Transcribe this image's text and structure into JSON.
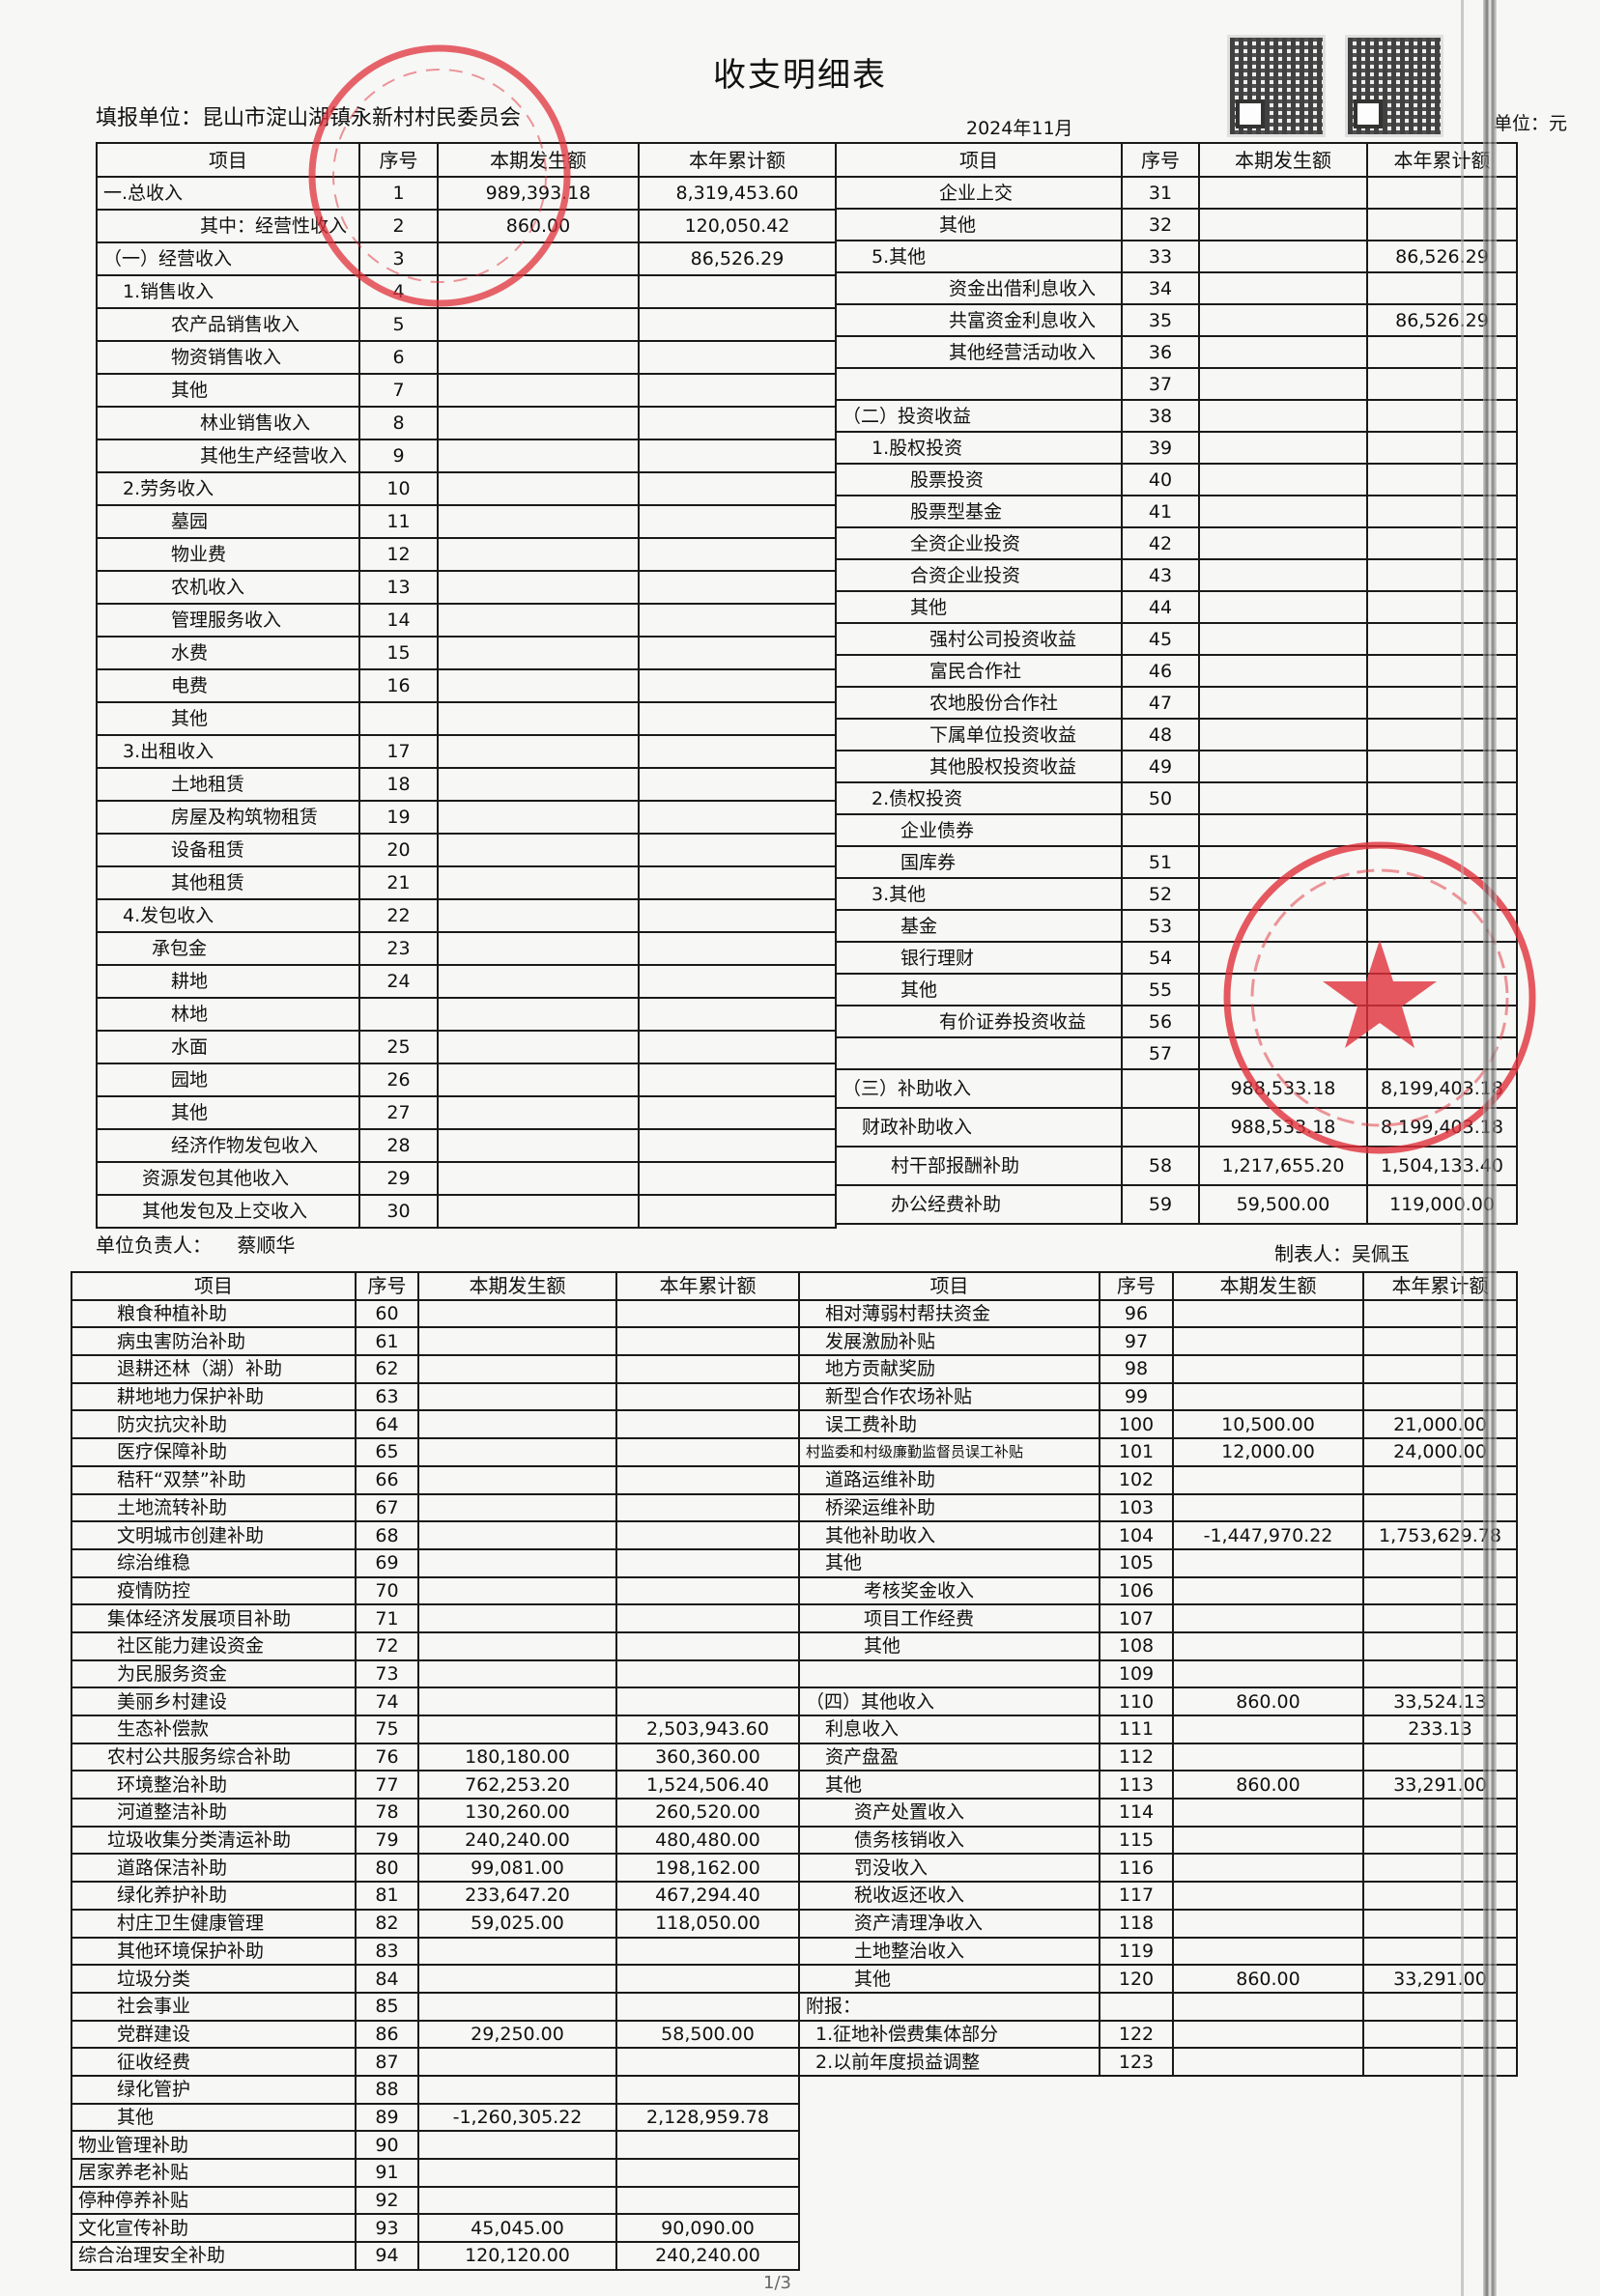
{
  "title": "收支明细表",
  "unit_label": "填报单位：昆山市淀山湖镇永新村村民委员会",
  "period": "2024年11月",
  "currency_label": "单位：元",
  "headers": {
    "item": "项目",
    "seq": "序号",
    "current": "本期发生额",
    "ytd": "本年累计额"
  },
  "responsible_label": "单位负责人：",
  "responsible_name": "蔡顺华",
  "preparer_label": "制表人：",
  "preparer_name": "吴佩玉",
  "page": "1/3",
  "colors": {
    "seal": "#e0303a",
    "ink": "#111111"
  },
  "icons": [
    "qr-code-icon",
    "qr-code-icon",
    "official-seal",
    "official-seal"
  ],
  "top_left": [
    {
      "item": "一.总收入",
      "seq": "1",
      "cur": "989,393.18",
      "ytd": "8,319,453.60"
    },
    {
      "item": "其中：经营性收入",
      "seq": "2",
      "cur": "860.00",
      "ytd": "120,050.42"
    },
    {
      "item": "（一）经营收入",
      "seq": "3",
      "cur": "",
      "ytd": "86,526.29"
    },
    {
      "item": "1.销售收入",
      "seq": "4",
      "cur": "",
      "ytd": ""
    },
    {
      "item": "农产品销售收入",
      "seq": "5",
      "cur": "",
      "ytd": ""
    },
    {
      "item": "物资销售收入",
      "seq": "6",
      "cur": "",
      "ytd": ""
    },
    {
      "item": "其他",
      "seq": "7",
      "cur": "",
      "ytd": ""
    },
    {
      "item": "林业销售收入",
      "seq": "8",
      "cur": "",
      "ytd": ""
    },
    {
      "item": "其他生产经营收入",
      "seq": "9",
      "cur": "",
      "ytd": ""
    },
    {
      "item": "2.劳务收入",
      "seq": "10",
      "cur": "",
      "ytd": ""
    },
    {
      "item": "墓园",
      "seq": "11",
      "cur": "",
      "ytd": ""
    },
    {
      "item": "物业费",
      "seq": "12",
      "cur": "",
      "ytd": ""
    },
    {
      "item": "农机收入",
      "seq": "13",
      "cur": "",
      "ytd": ""
    },
    {
      "item": "管理服务收入",
      "seq": "14",
      "cur": "",
      "ytd": ""
    },
    {
      "item": "水费",
      "seq": "15",
      "cur": "",
      "ytd": ""
    },
    {
      "item": "电费",
      "seq": "16",
      "cur": "",
      "ytd": ""
    },
    {
      "item": "其他",
      "seq": "",
      "cur": "",
      "ytd": ""
    },
    {
      "item": "3.出租收入",
      "seq": "17",
      "cur": "",
      "ytd": ""
    },
    {
      "item": "土地租赁",
      "seq": "18",
      "cur": "",
      "ytd": ""
    },
    {
      "item": "房屋及构筑物租赁",
      "seq": "19",
      "cur": "",
      "ytd": ""
    },
    {
      "item": "设备租赁",
      "seq": "20",
      "cur": "",
      "ytd": ""
    },
    {
      "item": "其他租赁",
      "seq": "21",
      "cur": "",
      "ytd": ""
    },
    {
      "item": "4.发包收入",
      "seq": "22",
      "cur": "",
      "ytd": ""
    },
    {
      "item": "承包金",
      "seq": "23",
      "cur": "",
      "ytd": ""
    },
    {
      "item": "耕地",
      "seq": "24",
      "cur": "",
      "ytd": ""
    },
    {
      "item": "林地",
      "seq": "",
      "cur": "",
      "ytd": ""
    },
    {
      "item": "水面",
      "seq": "25",
      "cur": "",
      "ytd": ""
    },
    {
      "item": "园地",
      "seq": "26",
      "cur": "",
      "ytd": ""
    },
    {
      "item": "其他",
      "seq": "27",
      "cur": "",
      "ytd": ""
    },
    {
      "item": "经济作物发包收入",
      "seq": "28",
      "cur": "",
      "ytd": ""
    },
    {
      "item": "资源发包其他收入",
      "seq": "29",
      "cur": "",
      "ytd": ""
    },
    {
      "item": "其他发包及上交收入",
      "seq": "30",
      "cur": "",
      "ytd": ""
    }
  ],
  "top_right": [
    {
      "item": "企业上交",
      "seq": "31",
      "cur": "",
      "ytd": ""
    },
    {
      "item": "其他",
      "seq": "32",
      "cur": "",
      "ytd": ""
    },
    {
      "item": "5.其他",
      "seq": "33",
      "cur": "",
      "ytd": "86,526.29"
    },
    {
      "item": "资金出借利息收入",
      "seq": "34",
      "cur": "",
      "ytd": ""
    },
    {
      "item": "共富资金利息收入",
      "seq": "35",
      "cur": "",
      "ytd": "86,526.29"
    },
    {
      "item": "其他经营活动收入",
      "seq": "36",
      "cur": "",
      "ytd": ""
    },
    {
      "item": "",
      "seq": "37",
      "cur": "",
      "ytd": ""
    },
    {
      "item": "（二）投资收益",
      "seq": "38",
      "cur": "",
      "ytd": ""
    },
    {
      "item": "1.股权投资",
      "seq": "39",
      "cur": "",
      "ytd": ""
    },
    {
      "item": "股票投资",
      "seq": "40",
      "cur": "",
      "ytd": ""
    },
    {
      "item": "股票型基金",
      "seq": "41",
      "cur": "",
      "ytd": ""
    },
    {
      "item": "全资企业投资",
      "seq": "42",
      "cur": "",
      "ytd": ""
    },
    {
      "item": "合资企业投资",
      "seq": "43",
      "cur": "",
      "ytd": ""
    },
    {
      "item": "其他",
      "seq": "44",
      "cur": "",
      "ytd": ""
    },
    {
      "item": "强村公司投资收益",
      "seq": "45",
      "cur": "",
      "ytd": ""
    },
    {
      "item": "富民合作社",
      "seq": "46",
      "cur": "",
      "ytd": ""
    },
    {
      "item": "农地股份合作社",
      "seq": "47",
      "cur": "",
      "ytd": ""
    },
    {
      "item": "下属单位投资收益",
      "seq": "48",
      "cur": "",
      "ytd": ""
    },
    {
      "item": "其他股权投资收益",
      "seq": "49",
      "cur": "",
      "ytd": ""
    },
    {
      "item": "2.债权投资",
      "seq": "50",
      "cur": "",
      "ytd": ""
    },
    {
      "item": "企业债券",
      "seq": "",
      "cur": "",
      "ytd": ""
    },
    {
      "item": "国库券",
      "seq": "51",
      "cur": "",
      "ytd": ""
    },
    {
      "item": "3.其他",
      "seq": "52",
      "cur": "",
      "ytd": ""
    },
    {
      "item": "基金",
      "seq": "53",
      "cur": "",
      "ytd": ""
    },
    {
      "item": "银行理财",
      "seq": "54",
      "cur": "",
      "ytd": ""
    },
    {
      "item": "其他",
      "seq": "55",
      "cur": "",
      "ytd": ""
    },
    {
      "item": "有价证券投资收益",
      "seq": "56",
      "cur": "",
      "ytd": ""
    },
    {
      "item": "",
      "seq": "57",
      "cur": "",
      "ytd": ""
    },
    {
      "item": "（三）补助收入",
      "seq": "",
      "cur": "988,533.18",
      "ytd": "8,199,403.18"
    },
    {
      "item": "财政补助收入",
      "seq": "",
      "cur": "988,533.18",
      "ytd": "8,199,403.18"
    },
    {
      "item": "村干部报酬补助",
      "seq": "58",
      "cur": "1,217,655.20",
      "ytd": "1,504,133.40"
    },
    {
      "item": "办公经费补助",
      "seq": "59",
      "cur": "59,500.00",
      "ytd": "119,000.00"
    }
  ],
  "bottom_left": [
    {
      "item": "粮食种植补助",
      "seq": "60",
      "cur": "",
      "ytd": ""
    },
    {
      "item": "病虫害防治补助",
      "seq": "61",
      "cur": "",
      "ytd": ""
    },
    {
      "item": "退耕还林（湖）补助",
      "seq": "62",
      "cur": "",
      "ytd": ""
    },
    {
      "item": "耕地地力保护补助",
      "seq": "63",
      "cur": "",
      "ytd": ""
    },
    {
      "item": "防灾抗灾补助",
      "seq": "64",
      "cur": "",
      "ytd": ""
    },
    {
      "item": "医疗保障补助",
      "seq": "65",
      "cur": "",
      "ytd": ""
    },
    {
      "item": "秸秆“双禁”补助",
      "seq": "66",
      "cur": "",
      "ytd": ""
    },
    {
      "item": "土地流转补助",
      "seq": "67",
      "cur": "",
      "ytd": ""
    },
    {
      "item": "文明城市创建补助",
      "seq": "68",
      "cur": "",
      "ytd": ""
    },
    {
      "item": "综治维稳",
      "seq": "69",
      "cur": "",
      "ytd": ""
    },
    {
      "item": "疫情防控",
      "seq": "70",
      "cur": "",
      "ytd": ""
    },
    {
      "item": "集体经济发展项目补助",
      "seq": "71",
      "cur": "",
      "ytd": ""
    },
    {
      "item": "社区能力建设资金",
      "seq": "72",
      "cur": "",
      "ytd": ""
    },
    {
      "item": "为民服务资金",
      "seq": "73",
      "cur": "",
      "ytd": ""
    },
    {
      "item": "美丽乡村建设",
      "seq": "74",
      "cur": "",
      "ytd": ""
    },
    {
      "item": "生态补偿款",
      "seq": "75",
      "cur": "",
      "ytd": "2,503,943.60"
    },
    {
      "item": "农村公共服务综合补助",
      "seq": "76",
      "cur": "180,180.00",
      "ytd": "360,360.00"
    },
    {
      "item": "环境整治补助",
      "seq": "77",
      "cur": "762,253.20",
      "ytd": "1,524,506.40"
    },
    {
      "item": "河道整洁补助",
      "seq": "78",
      "cur": "130,260.00",
      "ytd": "260,520.00"
    },
    {
      "item": "垃圾收集分类清运补助",
      "seq": "79",
      "cur": "240,240.00",
      "ytd": "480,480.00"
    },
    {
      "item": "道路保洁补助",
      "seq": "80",
      "cur": "99,081.00",
      "ytd": "198,162.00"
    },
    {
      "item": "绿化养护补助",
      "seq": "81",
      "cur": "233,647.20",
      "ytd": "467,294.40"
    },
    {
      "item": "村庄卫生健康管理",
      "seq": "82",
      "cur": "59,025.00",
      "ytd": "118,050.00"
    },
    {
      "item": "其他环境保护补助",
      "seq": "83",
      "cur": "",
      "ytd": ""
    },
    {
      "item": "垃圾分类",
      "seq": "84",
      "cur": "",
      "ytd": ""
    },
    {
      "item": "社会事业",
      "seq": "85",
      "cur": "",
      "ytd": ""
    },
    {
      "item": "党群建设",
      "seq": "86",
      "cur": "29,250.00",
      "ytd": "58,500.00"
    },
    {
      "item": "征收经费",
      "seq": "87",
      "cur": "",
      "ytd": ""
    },
    {
      "item": "绿化管护",
      "seq": "88",
      "cur": "",
      "ytd": ""
    },
    {
      "item": "其他",
      "seq": "89",
      "cur": "-1,260,305.22",
      "ytd": "2,128,959.78"
    },
    {
      "item": "物业管理补助",
      "seq": "90",
      "cur": "",
      "ytd": ""
    },
    {
      "item": "居家养老补贴",
      "seq": "91",
      "cur": "",
      "ytd": ""
    },
    {
      "item": "停种停养补贴",
      "seq": "92",
      "cur": "",
      "ytd": ""
    },
    {
      "item": "文化宣传补助",
      "seq": "93",
      "cur": "45,045.00",
      "ytd": "90,090.00"
    },
    {
      "item": "综合治理安全补助",
      "seq": "94",
      "cur": "120,120.00",
      "ytd": "240,240.00"
    }
  ],
  "bottom_right": [
    {
      "item": "相对薄弱村帮扶资金",
      "seq": "96",
      "cur": "",
      "ytd": ""
    },
    {
      "item": "发展激励补贴",
      "seq": "97",
      "cur": "",
      "ytd": ""
    },
    {
      "item": "地方贡献奖励",
      "seq": "98",
      "cur": "",
      "ytd": ""
    },
    {
      "item": "新型合作农场补贴",
      "seq": "99",
      "cur": "",
      "ytd": ""
    },
    {
      "item": "误工费补助",
      "seq": "100",
      "cur": "10,500.00",
      "ytd": "21,000.00"
    },
    {
      "item": "村监委和村级廉勤监督员误工补贴",
      "seq": "101",
      "cur": "12,000.00",
      "ytd": "24,000.00"
    },
    {
      "item": "道路运维补助",
      "seq": "102",
      "cur": "",
      "ytd": ""
    },
    {
      "item": "桥梁运维补助",
      "seq": "103",
      "cur": "",
      "ytd": ""
    },
    {
      "item": "其他补助收入",
      "seq": "104",
      "cur": "-1,447,970.22",
      "ytd": "1,753,629.78"
    },
    {
      "item": "其他",
      "seq": "105",
      "cur": "",
      "ytd": ""
    },
    {
      "item": "考核奖金收入",
      "seq": "106",
      "cur": "",
      "ytd": ""
    },
    {
      "item": "项目工作经费",
      "seq": "107",
      "cur": "",
      "ytd": ""
    },
    {
      "item": "其他",
      "seq": "108",
      "cur": "",
      "ytd": ""
    },
    {
      "item": "",
      "seq": "109",
      "cur": "",
      "ytd": ""
    },
    {
      "item": "（四）其他收入",
      "seq": "110",
      "cur": "860.00",
      "ytd": "33,524.13"
    },
    {
      "item": "利息收入",
      "seq": "111",
      "cur": "",
      "ytd": "233.13"
    },
    {
      "item": "资产盘盈",
      "seq": "112",
      "cur": "",
      "ytd": ""
    },
    {
      "item": "其他",
      "seq": "113",
      "cur": "860.00",
      "ytd": "33,291.00"
    },
    {
      "item": "资产处置收入",
      "seq": "114",
      "cur": "",
      "ytd": ""
    },
    {
      "item": "债务核销收入",
      "seq": "115",
      "cur": "",
      "ytd": ""
    },
    {
      "item": "罚没收入",
      "seq": "116",
      "cur": "",
      "ytd": ""
    },
    {
      "item": "税收返还收入",
      "seq": "117",
      "cur": "",
      "ytd": ""
    },
    {
      "item": "资产清理净收入",
      "seq": "118",
      "cur": "",
      "ytd": ""
    },
    {
      "item": "土地整治收入",
      "seq": "119",
      "cur": "",
      "ytd": ""
    },
    {
      "item": "其他",
      "seq": "120",
      "cur": "860.00",
      "ytd": "33,291.00"
    },
    {
      "item": "附报：",
      "seq": "",
      "cur": "",
      "ytd": ""
    },
    {
      "item": "1.征地补偿费集体部分",
      "seq": "122",
      "cur": "",
      "ytd": ""
    },
    {
      "item": "2.以前年度损益调整",
      "seq": "123",
      "cur": "",
      "ytd": ""
    }
  ]
}
